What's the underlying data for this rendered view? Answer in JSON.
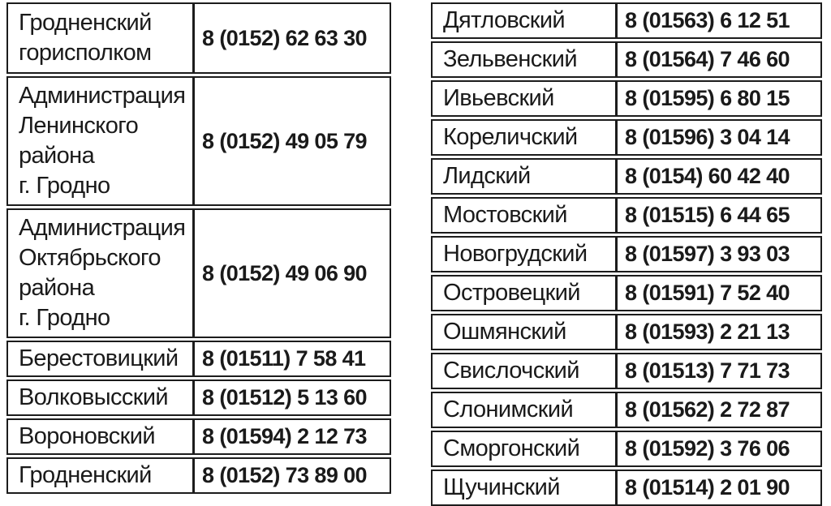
{
  "page": {
    "background": "#ffffff",
    "border_color": "#1c1c1c",
    "text_color": "#1a1a1a"
  },
  "left_table": {
    "rows": [
      {
        "name": "Гродненский\nгорисполком",
        "phone": "8 (0152) 62 63 30"
      },
      {
        "name": "Администрация\nЛенинского\nрайона\nг. Гродно",
        "phone": "8 (0152) 49 05 79"
      },
      {
        "name": "Администрация\nОктябрьского\nрайона\nг. Гродно",
        "phone": "8 (0152) 49 06 90"
      },
      {
        "name": "Берестовицкий",
        "phone": "8 (01511) 7 58 41"
      },
      {
        "name": "Волковысский",
        "phone": "8 (01512) 5 13 60"
      },
      {
        "name": "Вороновский",
        "phone": "8 (01594) 2 12 73"
      },
      {
        "name": "Гродненский",
        "phone": "8 (0152) 73 89 00"
      }
    ]
  },
  "right_table": {
    "rows": [
      {
        "name": "Дятловский",
        "phone": "8 (01563) 6 12 51"
      },
      {
        "name": "Зельвенский",
        "phone": "8 (01564) 7 46 60"
      },
      {
        "name": "Ивьевский",
        "phone": "8 (01595) 6 80 15"
      },
      {
        "name": "Кореличский",
        "phone": "8 (01596) 3 04 14"
      },
      {
        "name": "Лидский",
        "phone": "8 (0154) 60 42 40"
      },
      {
        "name": "Мостовский",
        "phone": "8 (01515) 6 44 65"
      },
      {
        "name": "Новогрудский",
        "phone": "8 (01597) 3 93 03"
      },
      {
        "name": "Островецкий",
        "phone": "8 (01591) 7 52 40"
      },
      {
        "name": "Ошмянский",
        "phone": "8 (01593) 2 21 13"
      },
      {
        "name": "Свислочский",
        "phone": "8 (01513) 7 71 73"
      },
      {
        "name": "Слонимский",
        "phone": "8 (01562) 2 72 87"
      },
      {
        "name": "Сморгонский",
        "phone": "8 (01592) 3 76 06"
      },
      {
        "name": "Щучинский",
        "phone": "8 (01514) 2 01 90"
      }
    ]
  }
}
